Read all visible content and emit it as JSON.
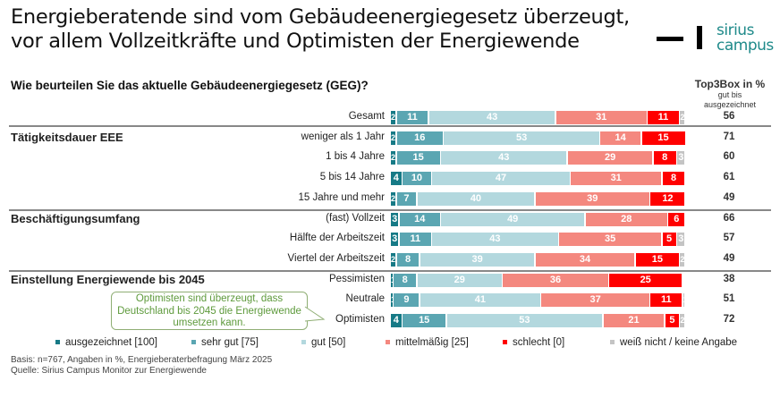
{
  "title_lines": [
    "Energieberatende sind vom Gebäudeenergiegesetz überzeugt,",
    "vor allem Vollzeitkräfte und Optimisten der Energiewende"
  ],
  "logo": {
    "line1": "sirius",
    "line2": "campus"
  },
  "question": "Wie beurteilen Sie das aktuelle Gebäudeenergiegesetz (GEG)?",
  "top3_header": {
    "title": "Top3Box in %",
    "sub1": "gut bis",
    "sub2": "ausgezeichnet"
  },
  "callout": "Optimisten sind überzeugt, dass Deutschland bis 2045 die Energiewende umsetzen kann.",
  "footer": {
    "basis": "Basis: n=767, Angaben in %, Energieberaterbefragung März 2025",
    "source": "Quelle: Sirius Campus Monitor zur Energiewende"
  },
  "chart_data": {
    "type": "bar",
    "orientation": "horizontal-stacked-100",
    "legend_position": "bottom",
    "series": [
      {
        "name": "ausgezeichnet [100]",
        "color": "#167a86"
      },
      {
        "name": "sehr gut [75]",
        "color": "#5ba6b2"
      },
      {
        "name": "gut [50]",
        "color": "#b3d8de"
      },
      {
        "name": "mittelmäßig [25]",
        "color": "#f4887f"
      },
      {
        "name": "schlecht [0]",
        "color": "#ff0000"
      },
      {
        "name": "weiß nicht / keine Angabe",
        "color": "#c4c4c4"
      }
    ],
    "groups": [
      {
        "name": "",
        "rows": [
          {
            "label": "Gesamt",
            "values": [
              2,
              11,
              43,
              31,
              11,
              2
            ],
            "top3": 56
          }
        ]
      },
      {
        "name": "Tätigkeitsdauer EEE",
        "rows": [
          {
            "label": "weniger als 1 Jahr",
            "values": [
              2,
              16,
              53,
              14,
              15,
              0
            ],
            "top3": 71
          },
          {
            "label": "1 bis 4 Jahre",
            "values": [
              2,
              15,
              43,
              29,
              8,
              3
            ],
            "top3": 60
          },
          {
            "label": "5 bis 14 Jahre",
            "values": [
              4,
              10,
              47,
              31,
              8,
              0
            ],
            "top3": 61
          },
          {
            "label": "15 Jahre und mehr",
            "values": [
              2,
              7,
              40,
              39,
              12,
              0
            ],
            "top3": 49
          }
        ]
      },
      {
        "name": "Beschäftigungsumfang",
        "rows": [
          {
            "label": "(fast) Vollzeit",
            "values": [
              3,
              14,
              49,
              28,
              6,
              0
            ],
            "top3": 66
          },
          {
            "label": "Hälfte der Arbeitszeit",
            "values": [
              3,
              11,
              43,
              35,
              5,
              3
            ],
            "top3": 57
          },
          {
            "label": "Viertel der Arbeitszeit",
            "values": [
              2,
              8,
              39,
              34,
              15,
              2
            ],
            "top3": 49
          }
        ]
      },
      {
        "name": "Einstellung Energiewende bis 2045",
        "rows": [
          {
            "label": "Pessimisten",
            "values": [
              1,
              8,
              29,
              36,
              25,
              0
            ],
            "top3": 38
          },
          {
            "label": "Neutrale",
            "values": [
              1,
              9,
              41,
              37,
              11,
              1
            ],
            "top3": 51
          },
          {
            "label": "Optimisten",
            "values": [
              4,
              15,
              53,
              21,
              5,
              2
            ],
            "top3": 72
          }
        ]
      }
    ]
  }
}
